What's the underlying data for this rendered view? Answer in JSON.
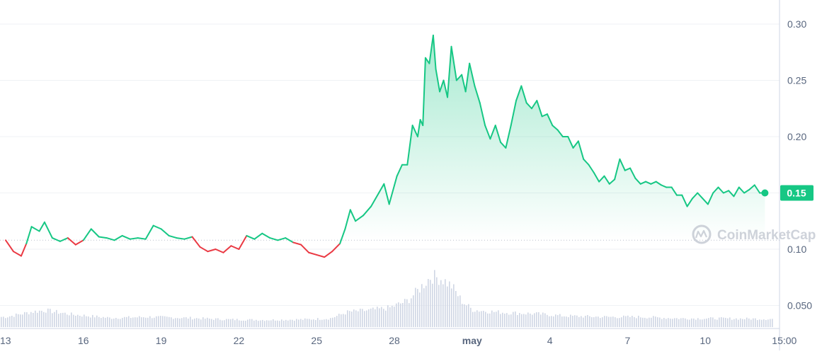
{
  "chart_data": {
    "type": "area",
    "watermark": "CoinMarketCap",
    "current_price_label": "0.15",
    "x_ticks": [
      "13",
      "16",
      "19",
      "22",
      "25",
      "28",
      "may",
      "4",
      "7",
      "10",
      "15:00"
    ],
    "y_ticks": [
      "0.050",
      "0.10",
      "0.15",
      "0.20",
      "0.25",
      "0.30"
    ],
    "ylim": [
      0.04,
      0.32
    ],
    "baseline_price": 0.108,
    "grid": true,
    "colors": {
      "up": "#16c784",
      "down": "#ea3943",
      "volume": "#cfd6e4",
      "badge": "#16c784"
    },
    "series": [
      {
        "values": [
          [
            0.0,
            0.108
          ],
          [
            0.3,
            0.098
          ],
          [
            0.6,
            0.094
          ],
          [
            0.8,
            0.105
          ],
          [
            1.0,
            0.12
          ],
          [
            1.3,
            0.116
          ],
          [
            1.5,
            0.124
          ],
          [
            1.8,
            0.11
          ],
          [
            2.1,
            0.107
          ],
          [
            2.4,
            0.11
          ],
          [
            2.7,
            0.104
          ],
          [
            3.0,
            0.108
          ],
          [
            3.3,
            0.118
          ],
          [
            3.6,
            0.111
          ],
          [
            3.9,
            0.11
          ],
          [
            4.2,
            0.108
          ],
          [
            4.5,
            0.112
          ],
          [
            4.8,
            0.109
          ],
          [
            5.1,
            0.11
          ],
          [
            5.4,
            0.109
          ],
          [
            5.7,
            0.121
          ],
          [
            6.0,
            0.118
          ],
          [
            6.3,
            0.112
          ],
          [
            6.6,
            0.11
          ],
          [
            6.9,
            0.109
          ],
          [
            7.2,
            0.111
          ],
          [
            7.5,
            0.102
          ],
          [
            7.8,
            0.098
          ],
          [
            8.1,
            0.1
          ],
          [
            8.4,
            0.097
          ],
          [
            8.7,
            0.103
          ],
          [
            9.0,
            0.1
          ],
          [
            9.3,
            0.112
          ],
          [
            9.6,
            0.109
          ],
          [
            9.9,
            0.114
          ],
          [
            10.2,
            0.11
          ],
          [
            10.5,
            0.108
          ],
          [
            10.8,
            0.11
          ],
          [
            11.1,
            0.106
          ],
          [
            11.4,
            0.104
          ],
          [
            11.7,
            0.097
          ],
          [
            12.0,
            0.095
          ],
          [
            12.3,
            0.093
          ],
          [
            12.6,
            0.098
          ],
          [
            12.9,
            0.105
          ],
          [
            13.1,
            0.118
          ],
          [
            13.3,
            0.135
          ],
          [
            13.5,
            0.125
          ],
          [
            13.8,
            0.13
          ],
          [
            14.1,
            0.138
          ],
          [
            14.4,
            0.15
          ],
          [
            14.6,
            0.158
          ],
          [
            14.8,
            0.14
          ],
          [
            15.1,
            0.165
          ],
          [
            15.3,
            0.175
          ],
          [
            15.5,
            0.175
          ],
          [
            15.7,
            0.21
          ],
          [
            15.9,
            0.2
          ],
          [
            16.0,
            0.215
          ],
          [
            16.1,
            0.21
          ],
          [
            16.2,
            0.27
          ],
          [
            16.35,
            0.265
          ],
          [
            16.5,
            0.29
          ],
          [
            16.6,
            0.26
          ],
          [
            16.75,
            0.24
          ],
          [
            16.9,
            0.25
          ],
          [
            17.05,
            0.235
          ],
          [
            17.2,
            0.28
          ],
          [
            17.4,
            0.25
          ],
          [
            17.6,
            0.255
          ],
          [
            17.75,
            0.24
          ],
          [
            17.9,
            0.265
          ],
          [
            18.1,
            0.245
          ],
          [
            18.3,
            0.23
          ],
          [
            18.5,
            0.21
          ],
          [
            18.7,
            0.198
          ],
          [
            18.9,
            0.21
          ],
          [
            19.1,
            0.195
          ],
          [
            19.3,
            0.19
          ],
          [
            19.5,
            0.21
          ],
          [
            19.7,
            0.232
          ],
          [
            19.9,
            0.245
          ],
          [
            20.1,
            0.23
          ],
          [
            20.3,
            0.225
          ],
          [
            20.5,
            0.232
          ],
          [
            20.7,
            0.218
          ],
          [
            20.9,
            0.22
          ],
          [
            21.1,
            0.21
          ],
          [
            21.3,
            0.206
          ],
          [
            21.5,
            0.2
          ],
          [
            21.7,
            0.2
          ],
          [
            21.9,
            0.19
          ],
          [
            22.1,
            0.196
          ],
          [
            22.3,
            0.18
          ],
          [
            22.5,
            0.175
          ],
          [
            22.7,
            0.168
          ],
          [
            22.9,
            0.16
          ],
          [
            23.1,
            0.165
          ],
          [
            23.3,
            0.158
          ],
          [
            23.5,
            0.162
          ],
          [
            23.7,
            0.18
          ],
          [
            23.9,
            0.17
          ],
          [
            24.1,
            0.172
          ],
          [
            24.3,
            0.163
          ],
          [
            24.5,
            0.158
          ],
          [
            24.7,
            0.16
          ],
          [
            24.9,
            0.158
          ],
          [
            25.1,
            0.16
          ],
          [
            25.3,
            0.157
          ],
          [
            25.5,
            0.155
          ],
          [
            25.7,
            0.155
          ],
          [
            25.9,
            0.148
          ],
          [
            26.1,
            0.148
          ],
          [
            26.3,
            0.138
          ],
          [
            26.5,
            0.145
          ],
          [
            26.7,
            0.15
          ],
          [
            26.9,
            0.145
          ],
          [
            27.1,
            0.14
          ],
          [
            27.3,
            0.15
          ],
          [
            27.5,
            0.155
          ],
          [
            27.7,
            0.15
          ],
          [
            27.9,
            0.152
          ],
          [
            28.1,
            0.147
          ],
          [
            28.3,
            0.155
          ],
          [
            28.5,
            0.15
          ],
          [
            28.7,
            0.153
          ],
          [
            28.9,
            0.157
          ],
          [
            29.1,
            0.15
          ],
          [
            29.3,
            0.15
          ]
        ]
      }
    ],
    "volume": [
      [
        0.0,
        0.2
      ],
      [
        1.0,
        0.3
      ],
      [
        1.5,
        0.33
      ],
      [
        2.5,
        0.25
      ],
      [
        4.0,
        0.18
      ],
      [
        5.5,
        0.2
      ],
      [
        7.0,
        0.18
      ],
      [
        8.5,
        0.15
      ],
      [
        10.0,
        0.14
      ],
      [
        11.5,
        0.15
      ],
      [
        12.5,
        0.17
      ],
      [
        13.2,
        0.3
      ],
      [
        14.0,
        0.33
      ],
      [
        14.8,
        0.38
      ],
      [
        15.5,
        0.52
      ],
      [
        16.0,
        0.78
      ],
      [
        16.4,
        1.0
      ],
      [
        16.8,
        0.95
      ],
      [
        17.2,
        0.8
      ],
      [
        17.6,
        0.5
      ],
      [
        18.0,
        0.34
      ],
      [
        18.8,
        0.3
      ],
      [
        19.5,
        0.28
      ],
      [
        20.5,
        0.26
      ],
      [
        21.5,
        0.22
      ],
      [
        23.0,
        0.2
      ],
      [
        24.5,
        0.2
      ],
      [
        26.0,
        0.17
      ],
      [
        27.5,
        0.17
      ],
      [
        29.3,
        0.16
      ]
    ]
  }
}
